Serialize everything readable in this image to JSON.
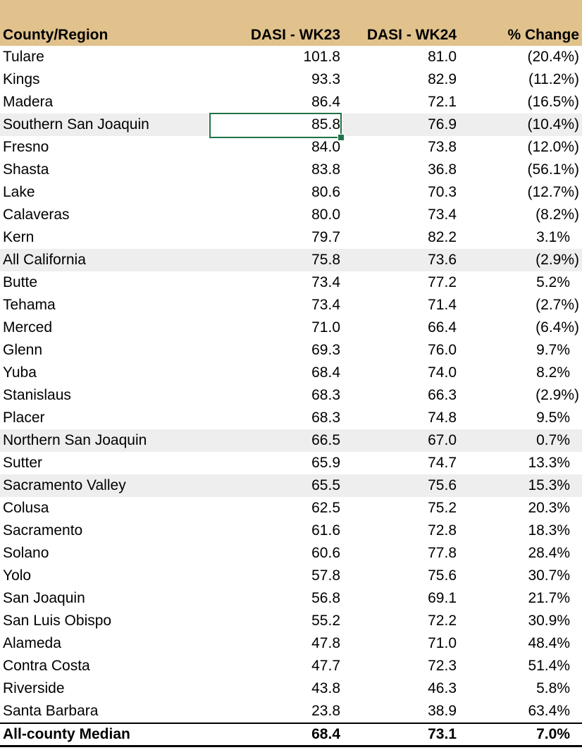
{
  "colors": {
    "header_bg": "#E1C28C",
    "region_row_bg": "#EEEEEE",
    "selection_border": "#217346",
    "text": "#000000"
  },
  "selection": {
    "row": "Southern San Joaquin",
    "column": "DASI - WK23",
    "value": "85.8"
  },
  "table": {
    "columns": [
      "County/Region",
      "DASI - WK23",
      "DASI - WK24",
      "% Change"
    ],
    "rows": [
      {
        "name": "Tulare",
        "wk23": "101.8",
        "wk24": "81.0",
        "change": "(20.4%)",
        "is_region": false
      },
      {
        "name": "Kings",
        "wk23": "93.3",
        "wk24": "82.9",
        "change": "(11.2%)",
        "is_region": false
      },
      {
        "name": "Madera",
        "wk23": "86.4",
        "wk24": "72.1",
        "change": "(16.5%)",
        "is_region": false
      },
      {
        "name": "Southern San Joaquin",
        "wk23": "85.8",
        "wk24": "76.9",
        "change": "(10.4%)",
        "is_region": true
      },
      {
        "name": "Fresno",
        "wk23": "84.0",
        "wk24": "73.8",
        "change": "(12.0%)",
        "is_region": false
      },
      {
        "name": "Shasta",
        "wk23": "83.8",
        "wk24": "36.8",
        "change": "(56.1%)",
        "is_region": false
      },
      {
        "name": "Lake",
        "wk23": "80.6",
        "wk24": "70.3",
        "change": "(12.7%)",
        "is_region": false
      },
      {
        "name": "Calaveras",
        "wk23": "80.0",
        "wk24": "73.4",
        "change": "(8.2%)",
        "is_region": false
      },
      {
        "name": "Kern",
        "wk23": "79.7",
        "wk24": "82.2",
        "change": "3.1%",
        "is_region": false
      },
      {
        "name": "All California",
        "wk23": "75.8",
        "wk24": "73.6",
        "change": "(2.9%)",
        "is_region": true
      },
      {
        "name": "Butte",
        "wk23": "73.4",
        "wk24": "77.2",
        "change": "5.2%",
        "is_region": false
      },
      {
        "name": "Tehama",
        "wk23": "73.4",
        "wk24": "71.4",
        "change": "(2.7%)",
        "is_region": false
      },
      {
        "name": "Merced",
        "wk23": "71.0",
        "wk24": "66.4",
        "change": "(6.4%)",
        "is_region": false
      },
      {
        "name": "Glenn",
        "wk23": "69.3",
        "wk24": "76.0",
        "change": "9.7%",
        "is_region": false
      },
      {
        "name": "Yuba",
        "wk23": "68.4",
        "wk24": "74.0",
        "change": "8.2%",
        "is_region": false
      },
      {
        "name": "Stanislaus",
        "wk23": "68.3",
        "wk24": "66.3",
        "change": "(2.9%)",
        "is_region": false
      },
      {
        "name": "Placer",
        "wk23": "68.3",
        "wk24": "74.8",
        "change": "9.5%",
        "is_region": false
      },
      {
        "name": "Northern San Joaquin",
        "wk23": "66.5",
        "wk24": "67.0",
        "change": "0.7%",
        "is_region": true
      },
      {
        "name": "Sutter",
        "wk23": "65.9",
        "wk24": "74.7",
        "change": "13.3%",
        "is_region": false
      },
      {
        "name": "Sacramento Valley",
        "wk23": "65.5",
        "wk24": "75.6",
        "change": "15.3%",
        "is_region": true
      },
      {
        "name": "Colusa",
        "wk23": "62.5",
        "wk24": "75.2",
        "change": "20.3%",
        "is_region": false
      },
      {
        "name": "Sacramento",
        "wk23": "61.6",
        "wk24": "72.8",
        "change": "18.3%",
        "is_region": false
      },
      {
        "name": "Solano",
        "wk23": "60.6",
        "wk24": "77.8",
        "change": "28.4%",
        "is_region": false
      },
      {
        "name": "Yolo",
        "wk23": "57.8",
        "wk24": "75.6",
        "change": "30.7%",
        "is_region": false
      },
      {
        "name": "San Joaquin",
        "wk23": "56.8",
        "wk24": "69.1",
        "change": "21.7%",
        "is_region": false
      },
      {
        "name": "San Luis Obispo",
        "wk23": "55.2",
        "wk24": "72.2",
        "change": "30.9%",
        "is_region": false
      },
      {
        "name": "Alameda",
        "wk23": "47.8",
        "wk24": "71.0",
        "change": "48.4%",
        "is_region": false
      },
      {
        "name": "Contra Costa",
        "wk23": "47.7",
        "wk24": "72.3",
        "change": "51.4%",
        "is_region": false
      },
      {
        "name": "Riverside",
        "wk23": "43.8",
        "wk24": "46.3",
        "change": "5.8%",
        "is_region": false
      },
      {
        "name": "Santa Barbara",
        "wk23": "23.8",
        "wk24": "38.9",
        "change": "63.4%",
        "is_region": false
      }
    ],
    "footer": {
      "name": "All-county Median",
      "wk23": "68.4",
      "wk24": "73.1",
      "change": "7.0%"
    }
  }
}
